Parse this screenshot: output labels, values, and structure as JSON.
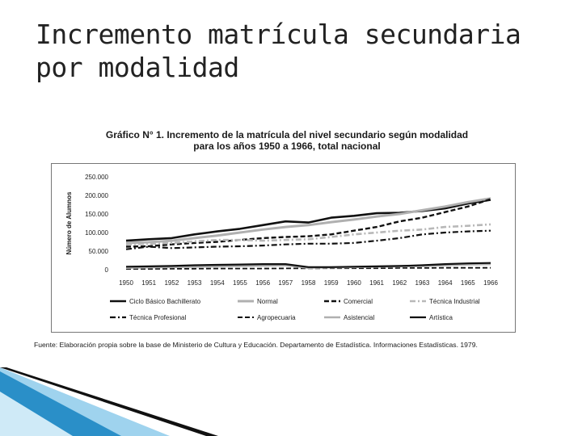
{
  "slide": {
    "title": "Incremento matrícula secundaria por modalidad"
  },
  "figure": {
    "title_line1": "Gráfico N° 1. Incremento de la matrícula del nivel secundario según modalidad",
    "title_line2": "para los años 1950 a 1966, total nacional",
    "source": "Fuente: Elaboración propia sobre la base de Ministerio de Cultura y Educación. Departamento de Estadística. Informaciones Estadísticas. 1979."
  },
  "colors": {
    "accent_blue": "#2a8fc8",
    "accent_light": "#9fd3ee",
    "ink": "#111111"
  },
  "chart_data": {
    "type": "line",
    "title": "Gráfico N° 1. Incremento de la matrícula del nivel secundario según modalidad para los años 1950 a 1966, total nacional",
    "xlabel": "",
    "ylabel": "Número de Alumnos",
    "categories": [
      "1950",
      "1951",
      "1952",
      "1953",
      "1954",
      "1955",
      "1956",
      "1957",
      "1958",
      "1959",
      "1960",
      "1961",
      "1962",
      "1963",
      "1964",
      "1965",
      "1966"
    ],
    "ylim": [
      0,
      250000
    ],
    "yticks": [
      0,
      50000,
      100000,
      150000,
      200000,
      250000
    ],
    "ytick_labels": [
      "0",
      "50.000",
      "100.000",
      "150.000",
      "200.000",
      "250.000"
    ],
    "grid": false,
    "legend_position": "bottom",
    "series": [
      {
        "name": "Ciclo Básico Bachillerato",
        "style": "solid",
        "color": "#111111",
        "width": 2.6,
        "values": [
          78000,
          82000,
          85000,
          95000,
          103000,
          110000,
          120000,
          130000,
          127000,
          140000,
          145000,
          152000,
          153000,
          158000,
          165000,
          178000,
          188000
        ]
      },
      {
        "name": "Normal",
        "style": "solid",
        "color": "#b0b0b0",
        "width": 3,
        "values": [
          72000,
          74000,
          78000,
          85000,
          92000,
          100000,
          108000,
          115000,
          120000,
          128000,
          135000,
          143000,
          150000,
          160000,
          170000,
          182000,
          192000
        ]
      },
      {
        "name": "Comercial",
        "style": "dash",
        "color": "#111111",
        "width": 2.4,
        "values": [
          62000,
          63000,
          68000,
          72000,
          75000,
          80000,
          85000,
          88000,
          90000,
          95000,
          105000,
          115000,
          130000,
          140000,
          155000,
          170000,
          190000
        ]
      },
      {
        "name": "Técnica Industrial",
        "style": "dashdot",
        "color": "#b8b8b8",
        "width": 2.6,
        "values": [
          68000,
          70000,
          72000,
          76000,
          80000,
          80000,
          78000,
          80000,
          82000,
          88000,
          95000,
          100000,
          105000,
          108000,
          115000,
          118000,
          122000
        ]
      },
      {
        "name": "Técnica Profesional",
        "style": "dashdot",
        "color": "#111111",
        "width": 2.2,
        "values": [
          55000,
          62000,
          58000,
          60000,
          62000,
          63000,
          65000,
          68000,
          70000,
          70000,
          72000,
          78000,
          85000,
          95000,
          100000,
          103000,
          105000
        ]
      },
      {
        "name": "Agropecuaria",
        "style": "dash",
        "color": "#111111",
        "width": 1.8,
        "values": [
          2000,
          2000,
          2500,
          2500,
          3000,
          3000,
          3000,
          3500,
          3500,
          4000,
          4000,
          4000,
          4500,
          4500,
          5000,
          5000,
          5000
        ]
      },
      {
        "name": "Asistencial",
        "style": "solid",
        "color": "#b0b0b0",
        "width": 2.6,
        "values": [
          5000,
          6000,
          7000,
          8000,
          9000,
          10000,
          11000,
          12000,
          5000,
          6000,
          7000,
          8000,
          9000,
          10000,
          12000,
          14000,
          15000
        ]
      },
      {
        "name": "Artística",
        "style": "solid",
        "color": "#111111",
        "width": 2.2,
        "values": [
          8000,
          9000,
          10000,
          12000,
          13000,
          14000,
          15000,
          15000,
          7000,
          7000,
          8000,
          9000,
          10000,
          12000,
          15000,
          17000,
          18000
        ]
      }
    ]
  }
}
